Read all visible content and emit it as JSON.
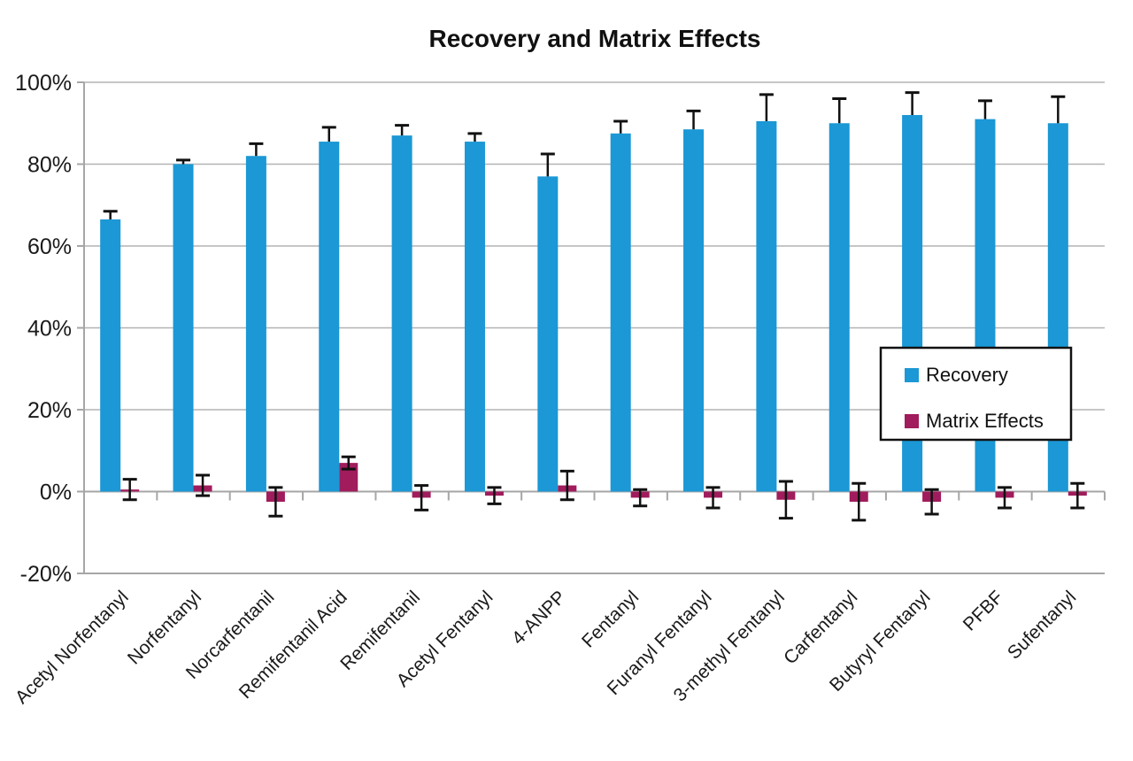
{
  "chart_data": {
    "type": "bar",
    "title": "Recovery and Matrix Effects",
    "categories": [
      "Acetyl Norfentanyl",
      "Norfentanyl",
      "Norcarfentanil",
      "Remifentanil Acid",
      "Remifentanil",
      "Acetyl Fentanyl",
      "4-ANPP",
      "Fentanyl",
      "Furanyl Fentanyl",
      "3-methyl Fentanyl",
      "Carfentanyl",
      "Butyryl Fentanyl",
      "PFBF",
      "Sufentanyl"
    ],
    "series": [
      {
        "name": "Recovery",
        "color": "#1b98d5",
        "unit": "%",
        "values": [
          66.5,
          80,
          82,
          85.5,
          87,
          85.5,
          77,
          87.5,
          88.5,
          90.5,
          90,
          92,
          91,
          90
        ],
        "errors": [
          2,
          1,
          3,
          3.5,
          2.5,
          2,
          5.5,
          3,
          4.5,
          6.5,
          6,
          5.5,
          4.5,
          6.5
        ],
        "error_bar_direction": "plus"
      },
      {
        "name": "Matrix Effects",
        "color": "#a01c5c",
        "unit": "%",
        "values": [
          0.5,
          1.5,
          -2.5,
          7,
          -1.5,
          -1,
          1.5,
          -1.5,
          -1.5,
          -2,
          -2.5,
          -2.5,
          -1.5,
          -1
        ],
        "errors": [
          2.5,
          2.5,
          3.5,
          1.5,
          3,
          2,
          3.5,
          2,
          2.5,
          4.5,
          4.5,
          3,
          2.5,
          3
        ],
        "error_bar_direction": "both"
      }
    ],
    "xlabel": "",
    "ylabel": "",
    "ylim": [
      -20,
      100
    ],
    "y_tick_labels": [
      "100%",
      "80%",
      "60%",
      "40%",
      "20%",
      "0%",
      "-20%"
    ],
    "y_tick_values": [
      100,
      80,
      60,
      40,
      20,
      0,
      -20
    ],
    "grid": true,
    "legend_position": "middle-right",
    "colors": {
      "gridline": "#b3b3b3",
      "axis": "#a6a6a6",
      "error_bar": "#111111",
      "background": "#ffffff",
      "text": "#1a1a1a"
    }
  }
}
